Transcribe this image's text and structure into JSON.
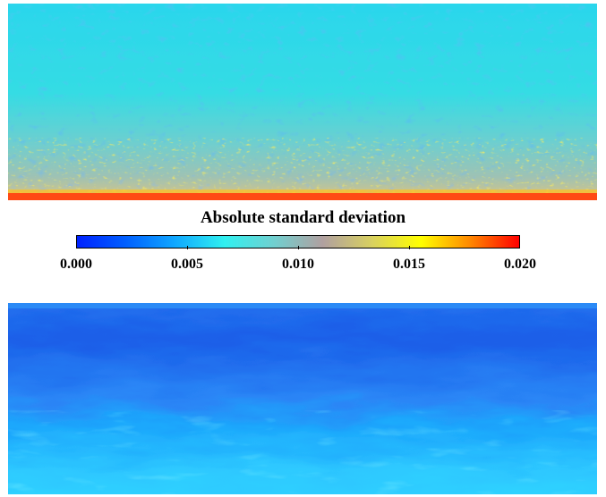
{
  "colorbar": {
    "title": "Absolute standard deviation",
    "ticks": [
      "0.000",
      "0.005",
      "0.010",
      "0.015",
      "0.020"
    ],
    "range": [
      0.0,
      0.02
    ],
    "colors": [
      "#0022ff",
      "#0060ff",
      "#10a8ff",
      "#30f0f0",
      "#70d0d0",
      "#b0a0a0",
      "#d8d060",
      "#ffff00",
      "#ff8800",
      "#ff0000"
    ]
  },
  "top_panel": {
    "base_color": "#2fd9e8",
    "band_color": "#9cbfb5",
    "hot_color": "#ffdd22",
    "edge_color": "#ff3b10"
  },
  "bottom_panel": {
    "upper_color": "#1e6cf0",
    "lower_color": "#1ec0ff",
    "bright_color": "#3fe8ff"
  }
}
